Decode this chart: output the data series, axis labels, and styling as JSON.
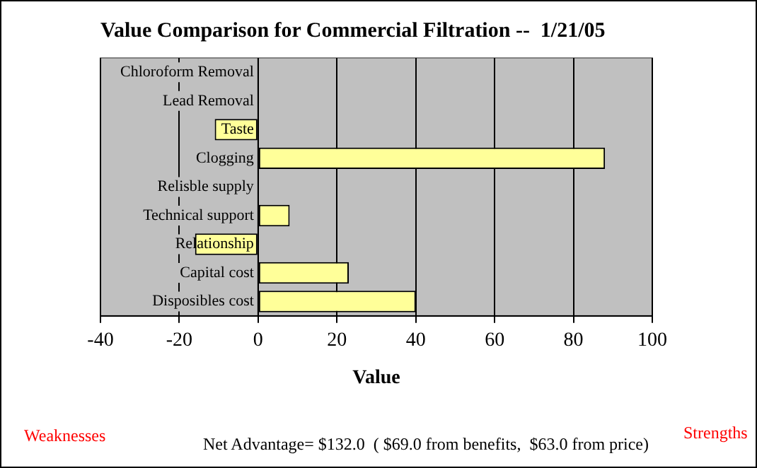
{
  "chart_data": {
    "type": "bar",
    "orientation": "horizontal",
    "title": "Value Comparison for Commercial Filtration --  1/21/05",
    "xlabel": "Value",
    "categories": [
      "Chloroform Removal",
      "Lead Removal",
      "Taste",
      "Clogging",
      "Relisble supply",
      "Technical support",
      "Relationship",
      "Capital cost",
      "Disposibles cost"
    ],
    "values": [
      0,
      0,
      -11,
      88,
      0,
      8,
      -16,
      23,
      40
    ],
    "color": "#ffff99",
    "xlim": [
      -40,
      100
    ],
    "xticks": [
      -40,
      -20,
      0,
      20,
      40,
      60,
      80,
      100
    ],
    "grid": "x",
    "legend": false,
    "annotations": [
      "Weaknesses",
      "Net Advantage= $132.0  ( $69.0 from benefits,  $63.0 from price)",
      "Strengths"
    ]
  }
}
